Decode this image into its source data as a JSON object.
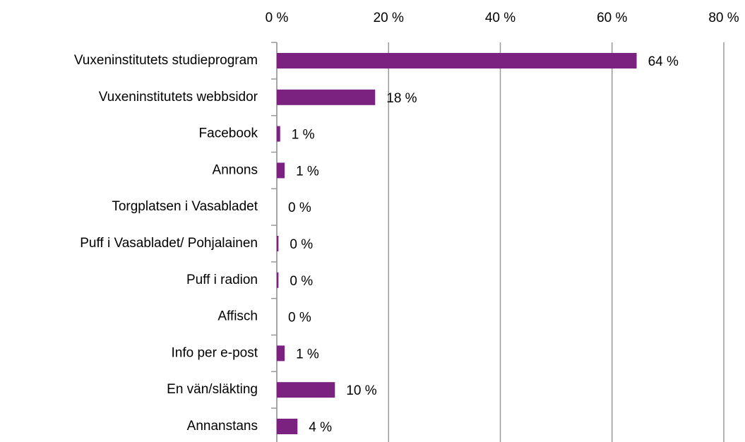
{
  "chart_data": {
    "type": "bar",
    "orientation": "horizontal",
    "categories": [
      "Vuxeninstitutets studieprogram",
      "Vuxeninstitutets webbsidor",
      "Facebook",
      "Annons",
      "Torgplatsen i Vasabladet",
      "Puff i Vasabladet/ Pohjalainen",
      "Puff i radion",
      "Affisch",
      "Info per e-post",
      "En vän/släkting",
      "Annanstans"
    ],
    "values": [
      64.4,
      17.6,
      0.6,
      1.4,
      0,
      0.3,
      0.3,
      0,
      1.4,
      10.4,
      3.7
    ],
    "value_labels": [
      "64 %",
      "18 %",
      "1 %",
      "1 %",
      "0 %",
      "0 %",
      "0 %",
      "0 %",
      "1 %",
      "10 %",
      "4 %"
    ],
    "color": "#7b2180",
    "xlim": [
      0,
      80
    ],
    "xticks": [
      {
        "value": 0,
        "label": "0 %"
      },
      {
        "value": 20,
        "label": "20 %"
      },
      {
        "value": 40,
        "label": "40 %"
      },
      {
        "value": 60,
        "label": "60 %"
      },
      {
        "value": 80,
        "label": "80 %"
      }
    ],
    "grid": true
  }
}
